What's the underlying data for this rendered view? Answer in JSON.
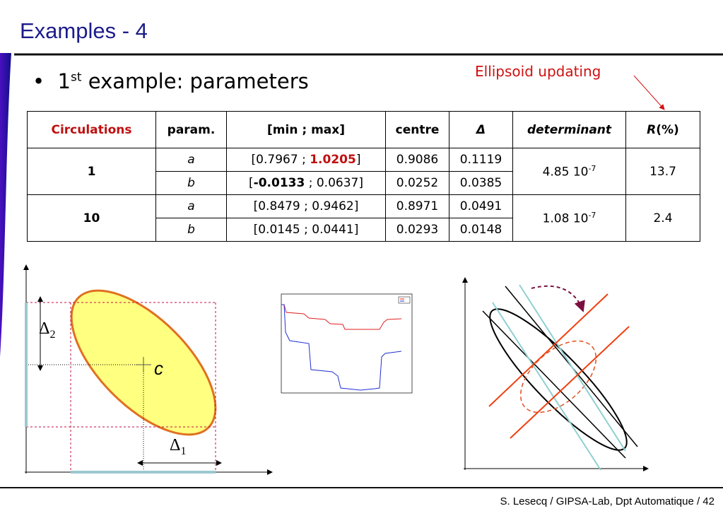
{
  "title": "Examples - 4",
  "bullet": {
    "lead": "1",
    "superscript": "st",
    "text": " example: parameters"
  },
  "annotation": "Ellipsoid updating",
  "table": {
    "headers": [
      "Circulations",
      "param.",
      "[min ; max]",
      "centre",
      "Δ",
      "determinant",
      [
        "R",
        "(%)"
      ]
    ],
    "groups": [
      {
        "circulation": "1",
        "determinant": [
          "4.85 10",
          "-7"
        ],
        "r": "13.7",
        "rows": [
          {
            "param": "a",
            "interval": [
              "[0.7967 ; ",
              "1.0205",
              "]"
            ],
            "centre": "0.9086",
            "delta": "0.1119"
          },
          {
            "param": "b",
            "interval": [
              "[",
              "-0.0133",
              " ; 0.0637]"
            ],
            "centre": "0.0252",
            "delta": "0.0385"
          }
        ]
      },
      {
        "circulation": "10",
        "determinant": [
          "1.08 10",
          "-7"
        ],
        "r": "2.4",
        "rows": [
          {
            "param": "a",
            "interval": "[0.8479 ; 0.9462]",
            "centre": "0.8971",
            "delta": "0.0491"
          },
          {
            "param": "b",
            "interval": "[0.0145 ; 0.0441]",
            "centre": "0.0293",
            "delta": "0.0148"
          }
        ]
      }
    ]
  },
  "diagram": {
    "delta2": [
      "Δ",
      "2"
    ],
    "centre": "c",
    "delta1": [
      "Δ",
      "1"
    ]
  },
  "footer": "S. Lesecq / GIPSA-Lab, Dpt Automatique / 42"
}
